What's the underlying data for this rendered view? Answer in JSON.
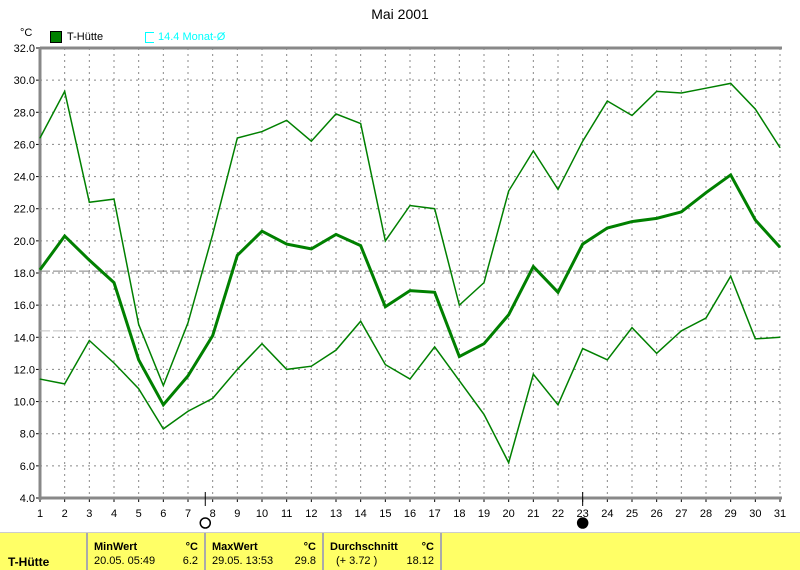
{
  "title": "Mai 2001",
  "unit": "°C",
  "legend": {
    "series": "T-Hütte",
    "series_color": "#008000",
    "avg_label": "14.4 Monat-Ø",
    "avg_color": "#00ffff"
  },
  "chart_data": {
    "type": "line",
    "title": "Mai 2001",
    "ylabel": "°C",
    "ylim": [
      4.0,
      32.0
    ],
    "yticks": [
      "4.0",
      "6.0",
      "8.0",
      "10.0",
      "12.0",
      "14.0",
      "16.0",
      "18.0",
      "20.0",
      "22.0",
      "24.0",
      "26.0",
      "28.0",
      "30.0",
      "32.0"
    ],
    "x": [
      1,
      2,
      3,
      4,
      5,
      6,
      7,
      8,
      9,
      10,
      11,
      12,
      13,
      14,
      15,
      16,
      17,
      18,
      19,
      20,
      21,
      22,
      23,
      24,
      25,
      26,
      27,
      28,
      29,
      30,
      31
    ],
    "grid": true,
    "series": [
      {
        "role": "max",
        "values": [
          26.4,
          29.3,
          22.4,
          22.6,
          14.8,
          11.0,
          14.9,
          20.4,
          26.4,
          26.8,
          27.5,
          26.2,
          27.9,
          27.3,
          20.0,
          22.2,
          22.0,
          16.0,
          17.4,
          23.1,
          25.6,
          23.2,
          26.2,
          28.7,
          27.8,
          29.3,
          29.2,
          29.5,
          29.8,
          28.2,
          25.8
        ]
      },
      {
        "role": "mean",
        "values": [
          18.2,
          20.3,
          18.8,
          17.4,
          12.6,
          9.8,
          11.6,
          14.1,
          19.1,
          20.6,
          19.8,
          19.5,
          20.4,
          19.7,
          15.9,
          16.9,
          16.8,
          12.8,
          13.6,
          15.4,
          18.4,
          16.8,
          19.8,
          20.8,
          21.2,
          21.4,
          21.8,
          23.0,
          24.1,
          21.3,
          19.6
        ]
      },
      {
        "role": "min",
        "values": [
          11.4,
          11.1,
          13.8,
          12.4,
          10.8,
          8.3,
          9.4,
          10.2,
          12.0,
          13.6,
          12.0,
          12.2,
          13.2,
          15.0,
          12.3,
          11.4,
          13.4,
          11.3,
          9.2,
          6.2,
          11.7,
          9.8,
          13.3,
          12.6,
          14.6,
          13.0,
          14.4,
          15.2,
          17.8,
          13.9,
          14.0
        ]
      }
    ],
    "reference_lines": [
      {
        "value": 18.12,
        "color": "#808080"
      },
      {
        "value": 14.4,
        "color": "#c0c0c0"
      }
    ],
    "moon_phases": [
      {
        "day": 7.7,
        "phase": "full-moon"
      },
      {
        "day": 23.0,
        "phase": "new-moon"
      }
    ]
  },
  "table": {
    "series": "T-Hütte",
    "min": {
      "label": "MinWert",
      "unit": "°C",
      "time": "20.05.  05:49",
      "value": "6.2"
    },
    "max": {
      "label": "MaxWert",
      "unit": "°C",
      "time": "29.05.  13:53",
      "value": "29.8"
    },
    "avg": {
      "label": "Durchschnitt",
      "unit": "°C",
      "diff": "(+ 3.72 )",
      "value": "18.12"
    }
  }
}
